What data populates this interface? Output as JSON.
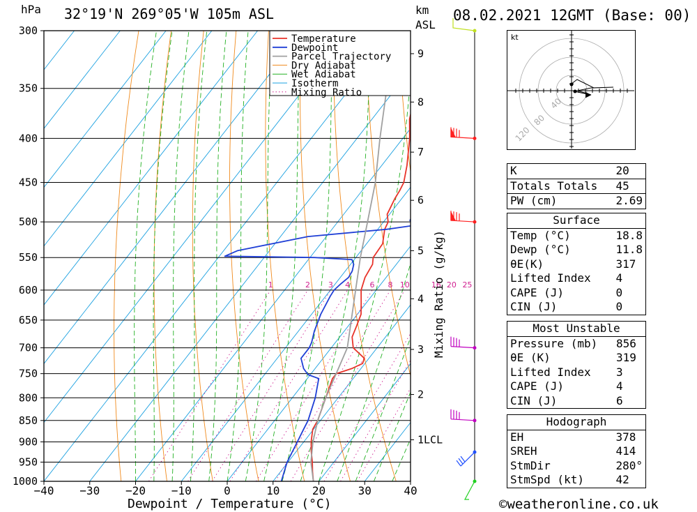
{
  "header": {
    "hpa_unit": "hPa",
    "location": "32°19'N 269°05'W 105m ASL",
    "km_unit": "km",
    "asl_unit": "ASL",
    "datetime": "08.02.2021 12GMT (Base: 00)"
  },
  "footer": {
    "copyright": "©weatheronline.co.uk"
  },
  "colors": {
    "temperature": "#e8332a",
    "dewpoint": "#1f3fd6",
    "parcel": "#a0a0a0",
    "dry_adiabat": "#f08a1c",
    "wet_adiabat": "#22b022",
    "isotherm": "#1aa0e0",
    "mixing_ratio": "#d02090",
    "wind_wall": "#ff6a00"
  },
  "chart_data": {
    "type": "line",
    "xlabel": "Dewpoint / Temperature (°C)",
    "ylabel_right": "Mixing Ratio (g/kg)",
    "xlim": [
      -40,
      40
    ],
    "ylim": [
      1000,
      300
    ],
    "x_ticks": [
      "−40",
      "−30",
      "−20",
      "−10",
      "0",
      "10",
      "20",
      "30",
      "40"
    ],
    "pressure_levels": [
      300,
      350,
      400,
      450,
      500,
      550,
      600,
      650,
      700,
      750,
      800,
      850,
      900,
      950,
      1000
    ],
    "height_ticks": [
      {
        "label": "9",
        "p": 319
      },
      {
        "label": "8",
        "p": 363
      },
      {
        "label": "7",
        "p": 415
      },
      {
        "label": "6",
        "p": 472
      },
      {
        "label": "5",
        "p": 540
      },
      {
        "label": "4",
        "p": 614
      },
      {
        "label": "3",
        "p": 703
      },
      {
        "label": "2",
        "p": 793
      },
      {
        "label": "1LCL",
        "p": 895
      }
    ],
    "mixing_ratio_labels": [
      "1",
      "2",
      "3",
      "4",
      "6",
      "8",
      "10",
      "16",
      "20",
      "25"
    ],
    "mixing_ratio_values": [
      1,
      2,
      3,
      4,
      6,
      8,
      10,
      16,
      20,
      25
    ],
    "legend": [
      "Temperature",
      "Dewpoint",
      "Parcel Trajectory",
      "Dry Adiabat",
      "Wet Adiabat",
      "Isotherm",
      "Mixing Ratio"
    ],
    "legend_position": "top-right",
    "series": [
      {
        "name": "Temperature",
        "points": [
          [
            1000,
            18.8
          ],
          [
            975,
            17
          ],
          [
            950,
            15.3
          ],
          [
            925,
            13.4
          ],
          [
            900,
            11.6
          ],
          [
            870,
            9.8
          ],
          [
            850,
            9.4
          ],
          [
            800,
            7.3
          ],
          [
            760,
            5.5
          ],
          [
            750,
            5.5
          ],
          [
            740,
            8
          ],
          [
            730,
            9.5
          ],
          [
            720,
            9
          ],
          [
            700,
            4.8
          ],
          [
            680,
            2.7
          ],
          [
            660,
            1.8
          ],
          [
            640,
            0.8
          ],
          [
            620,
            -1.2
          ],
          [
            600,
            -3.3
          ],
          [
            580,
            -4.6
          ],
          [
            560,
            -5.2
          ],
          [
            550,
            -6.2
          ],
          [
            530,
            -6.5
          ],
          [
            510,
            -8.5
          ],
          [
            500,
            -9
          ],
          [
            490,
            -10.5
          ],
          [
            480,
            -11
          ],
          [
            470,
            -11.5
          ],
          [
            460,
            -11.8
          ],
          [
            450,
            -12.3
          ],
          [
            430,
            -14.5
          ],
          [
            400,
            -18.5
          ],
          [
            380,
            -21.8
          ],
          [
            370,
            -23
          ],
          [
            360,
            -23.6
          ],
          [
            350,
            -25.5
          ],
          [
            330,
            -28.8
          ],
          [
            300,
            -33
          ]
        ]
      },
      {
        "name": "Dewpoint",
        "points": [
          [
            1000,
            11.8
          ],
          [
            950,
            9.8
          ],
          [
            900,
            8.6
          ],
          [
            870,
            7.8
          ],
          [
            850,
            7.3
          ],
          [
            800,
            5
          ],
          [
            760,
            2.5
          ],
          [
            752,
            -0.5
          ],
          [
            740,
            -2.5
          ],
          [
            720,
            -4.8
          ],
          [
            700,
            -4.8
          ],
          [
            690,
            -5.2
          ],
          [
            670,
            -6.5
          ],
          [
            640,
            -8
          ],
          [
            610,
            -9
          ],
          [
            600,
            -9.2
          ],
          [
            590,
            -8.8
          ],
          [
            580,
            -8.2
          ],
          [
            570,
            -8.5
          ],
          [
            560,
            -9.3
          ],
          [
            553,
            -10.5
          ],
          [
            550,
            -19
          ],
          [
            548,
            -38.8
          ],
          [
            540,
            -37
          ],
          [
            520,
            -24
          ],
          [
            510,
            -8
          ],
          [
            505,
            -3
          ],
          [
            498,
            -4.5
          ],
          [
            490,
            -4.8
          ],
          [
            485,
            -5.2
          ],
          [
            475,
            -4.5
          ],
          [
            470,
            -4.7
          ],
          [
            465,
            -4.2
          ],
          [
            455,
            -4
          ],
          [
            450,
            -4.5
          ],
          [
            420,
            -8.5
          ],
          [
            390,
            -13.5
          ],
          [
            375,
            -15
          ],
          [
            365,
            -16.3
          ],
          [
            360,
            -18
          ],
          [
            355,
            -20.5
          ],
          [
            345,
            -25
          ],
          [
            330,
            -28
          ],
          [
            300,
            -32
          ]
        ]
      },
      {
        "name": "Parcel Trajectory",
        "points": [
          [
            1000,
            18.8
          ],
          [
            950,
            15
          ],
          [
            900,
            12
          ],
          [
            850,
            9.4
          ],
          [
            800,
            7.3
          ],
          [
            700,
            3.5
          ],
          [
            600,
            -4.5
          ],
          [
            550,
            -9
          ],
          [
            500,
            -13.5
          ],
          [
            450,
            -18.5
          ],
          [
            400,
            -25
          ],
          [
            350,
            -32
          ],
          [
            300,
            -42
          ]
        ]
      }
    ],
    "wind_barbs": [
      {
        "p": 300,
        "color": "#c0e020"
      },
      {
        "p": 400,
        "color": "#ff2020",
        "label": "pennant"
      },
      {
        "p": 500,
        "color": "#ff2020",
        "label": "pennant"
      },
      {
        "p": 700,
        "color": "#c000c0"
      },
      {
        "p": 850,
        "color": "#c000c0"
      },
      {
        "p": 925,
        "color": "#2050ff"
      },
      {
        "p": 1000,
        "color": "#20d020"
      }
    ],
    "hodograph": {
      "unit_label": "kt",
      "ring_labels": [
        "40",
        "80",
        "120"
      ]
    }
  },
  "indices": {
    "k_label": "K",
    "k": "20",
    "tt_label": "Totals Totals",
    "tt": "45",
    "pw_label": "PW (cm)",
    "pw": "2.69",
    "surface_title": "Surface",
    "s_temp_label": "Temp (°C)",
    "s_temp": "18.8",
    "s_dewp_label": "Dewp (°C)",
    "s_dewp": "11.8",
    "s_theta_label": "θE(K)",
    "s_theta": "317",
    "s_li_label": "Lifted Index",
    "s_li": "4",
    "s_cape_label": "CAPE (J)",
    "s_cape": "0",
    "s_cin_label": "CIN (J)",
    "s_cin": "0",
    "mu_title": "Most Unstable",
    "mu_p_label": "Pressure (mb)",
    "mu_p": "856",
    "mu_theta_label": "θE (K)",
    "mu_theta": "319",
    "mu_li_label": "Lifted Index",
    "mu_li": "3",
    "mu_cape_label": "CAPE (J)",
    "mu_cape": "4",
    "mu_cin_label": "CIN (J)",
    "mu_cin": "6",
    "hodo_title": "Hodograph",
    "eh_label": "EH",
    "eh": "378",
    "sreh_label": "SREH",
    "sreh": "414",
    "stmdir_label": "StmDir",
    "stmdir": "280°",
    "stmspd_label": "StmSpd (kt)",
    "stmspd": "42"
  }
}
